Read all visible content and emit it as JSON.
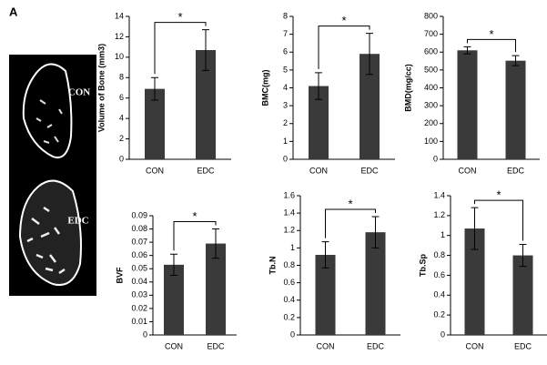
{
  "panel_label": "A",
  "image_labels": [
    "CON",
    "EDC"
  ],
  "chart_data": [
    {
      "type": "bar",
      "ylabel": "Volume of Bone (mm3)",
      "categories": [
        "CON",
        "EDC"
      ],
      "values": [
        6.9,
        10.7
      ],
      "errors": [
        1.1,
        2.0
      ],
      "annotation": "*",
      "color": "#3a3a3a",
      "ylim": [
        0,
        14
      ],
      "yticks": [
        0,
        2,
        4,
        6,
        8,
        10,
        12,
        14
      ]
    },
    {
      "type": "bar",
      "ylabel": "BMC(mg)",
      "categories": [
        "CON",
        "EDC"
      ],
      "values": [
        4.1,
        5.9
      ],
      "errors": [
        0.75,
        1.15
      ],
      "annotation": "*",
      "color": "#3a3a3a",
      "ylim": [
        0,
        8
      ],
      "yticks": [
        0,
        1,
        2,
        3,
        4,
        5,
        6,
        7,
        8
      ]
    },
    {
      "type": "bar",
      "ylabel": "BMD(mg/cc)",
      "categories": [
        "CON",
        "EDC"
      ],
      "values": [
        610,
        552
      ],
      "errors": [
        20,
        28
      ],
      "annotation": "*",
      "color": "#3a3a3a",
      "ylim": [
        0,
        800
      ],
      "yticks": [
        0,
        100,
        200,
        300,
        400,
        500,
        600,
        700,
        800
      ]
    },
    {
      "type": "bar",
      "ylabel": "BVF",
      "categories": [
        "CON",
        "EDC"
      ],
      "values": [
        0.053,
        0.069
      ],
      "errors": [
        0.008,
        0.011
      ],
      "annotation": "*",
      "color": "#3a3a3a",
      "ylim": [
        0,
        0.09
      ],
      "yticks": [
        0,
        0.01,
        0.02,
        0.03,
        0.04,
        0.05,
        0.06,
        0.07,
        0.08,
        0.09
      ]
    },
    {
      "type": "bar",
      "ylabel": "Tb.N",
      "categories": [
        "CON",
        "EDC"
      ],
      "values": [
        0.92,
        1.18
      ],
      "errors": [
        0.15,
        0.18
      ],
      "annotation": "*",
      "color": "#3a3a3a",
      "ylim": [
        0,
        1.6
      ],
      "yticks": [
        0,
        0.2,
        0.4,
        0.6,
        0.8,
        1,
        1.2,
        1.4,
        1.6
      ]
    },
    {
      "type": "bar",
      "ylabel": "Tb.Sp",
      "categories": [
        "CON",
        "EDC"
      ],
      "values": [
        1.07,
        0.8
      ],
      "errors": [
        0.21,
        0.11
      ],
      "annotation": "*",
      "color": "#3a3a3a",
      "ylim": [
        0,
        1.4
      ],
      "yticks": [
        0,
        0.2,
        0.4,
        0.6,
        0.8,
        1,
        1.2,
        1.4
      ]
    }
  ]
}
